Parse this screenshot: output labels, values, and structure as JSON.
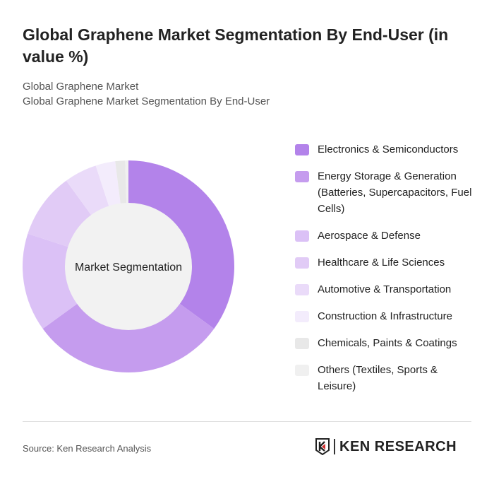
{
  "header": {
    "title": "Global Graphene Market Segmentation By End-User (in value %)",
    "subtitle1": "Global Graphene Market",
    "subtitle2": "Global Graphene Market Segmentation By End-User"
  },
  "chart_data": {
    "type": "pie",
    "title": "Global Graphene Market Segmentation By End-User (in value %)",
    "center_label": "Market Segmentation",
    "legend_position": "right",
    "categories": [
      "Electronics & Semiconductors",
      "Energy Storage & Generation (Batteries, Supercapacitors, Fuel Cells)",
      "Aerospace & Defense",
      "Healthcare & Life Sciences",
      "Automotive & Transportation",
      "Construction & Infrastructure",
      "Chemicals, Paints & Coatings",
      "Others (Textiles, Sports & Leisure)"
    ],
    "values": [
      35,
      30,
      15,
      10,
      5,
      3,
      1.5,
      0.5
    ],
    "colors": [
      "#b383ea",
      "#c59cee",
      "#dbc1f6",
      "#e1cbf6",
      "#eadbf9",
      "#f3ecfc",
      "#e8e8e8",
      "#f0f0f0"
    ]
  },
  "footer": {
    "source": "Source: Ken Research Analysis",
    "logo_text": "KEN RESEARCH"
  }
}
